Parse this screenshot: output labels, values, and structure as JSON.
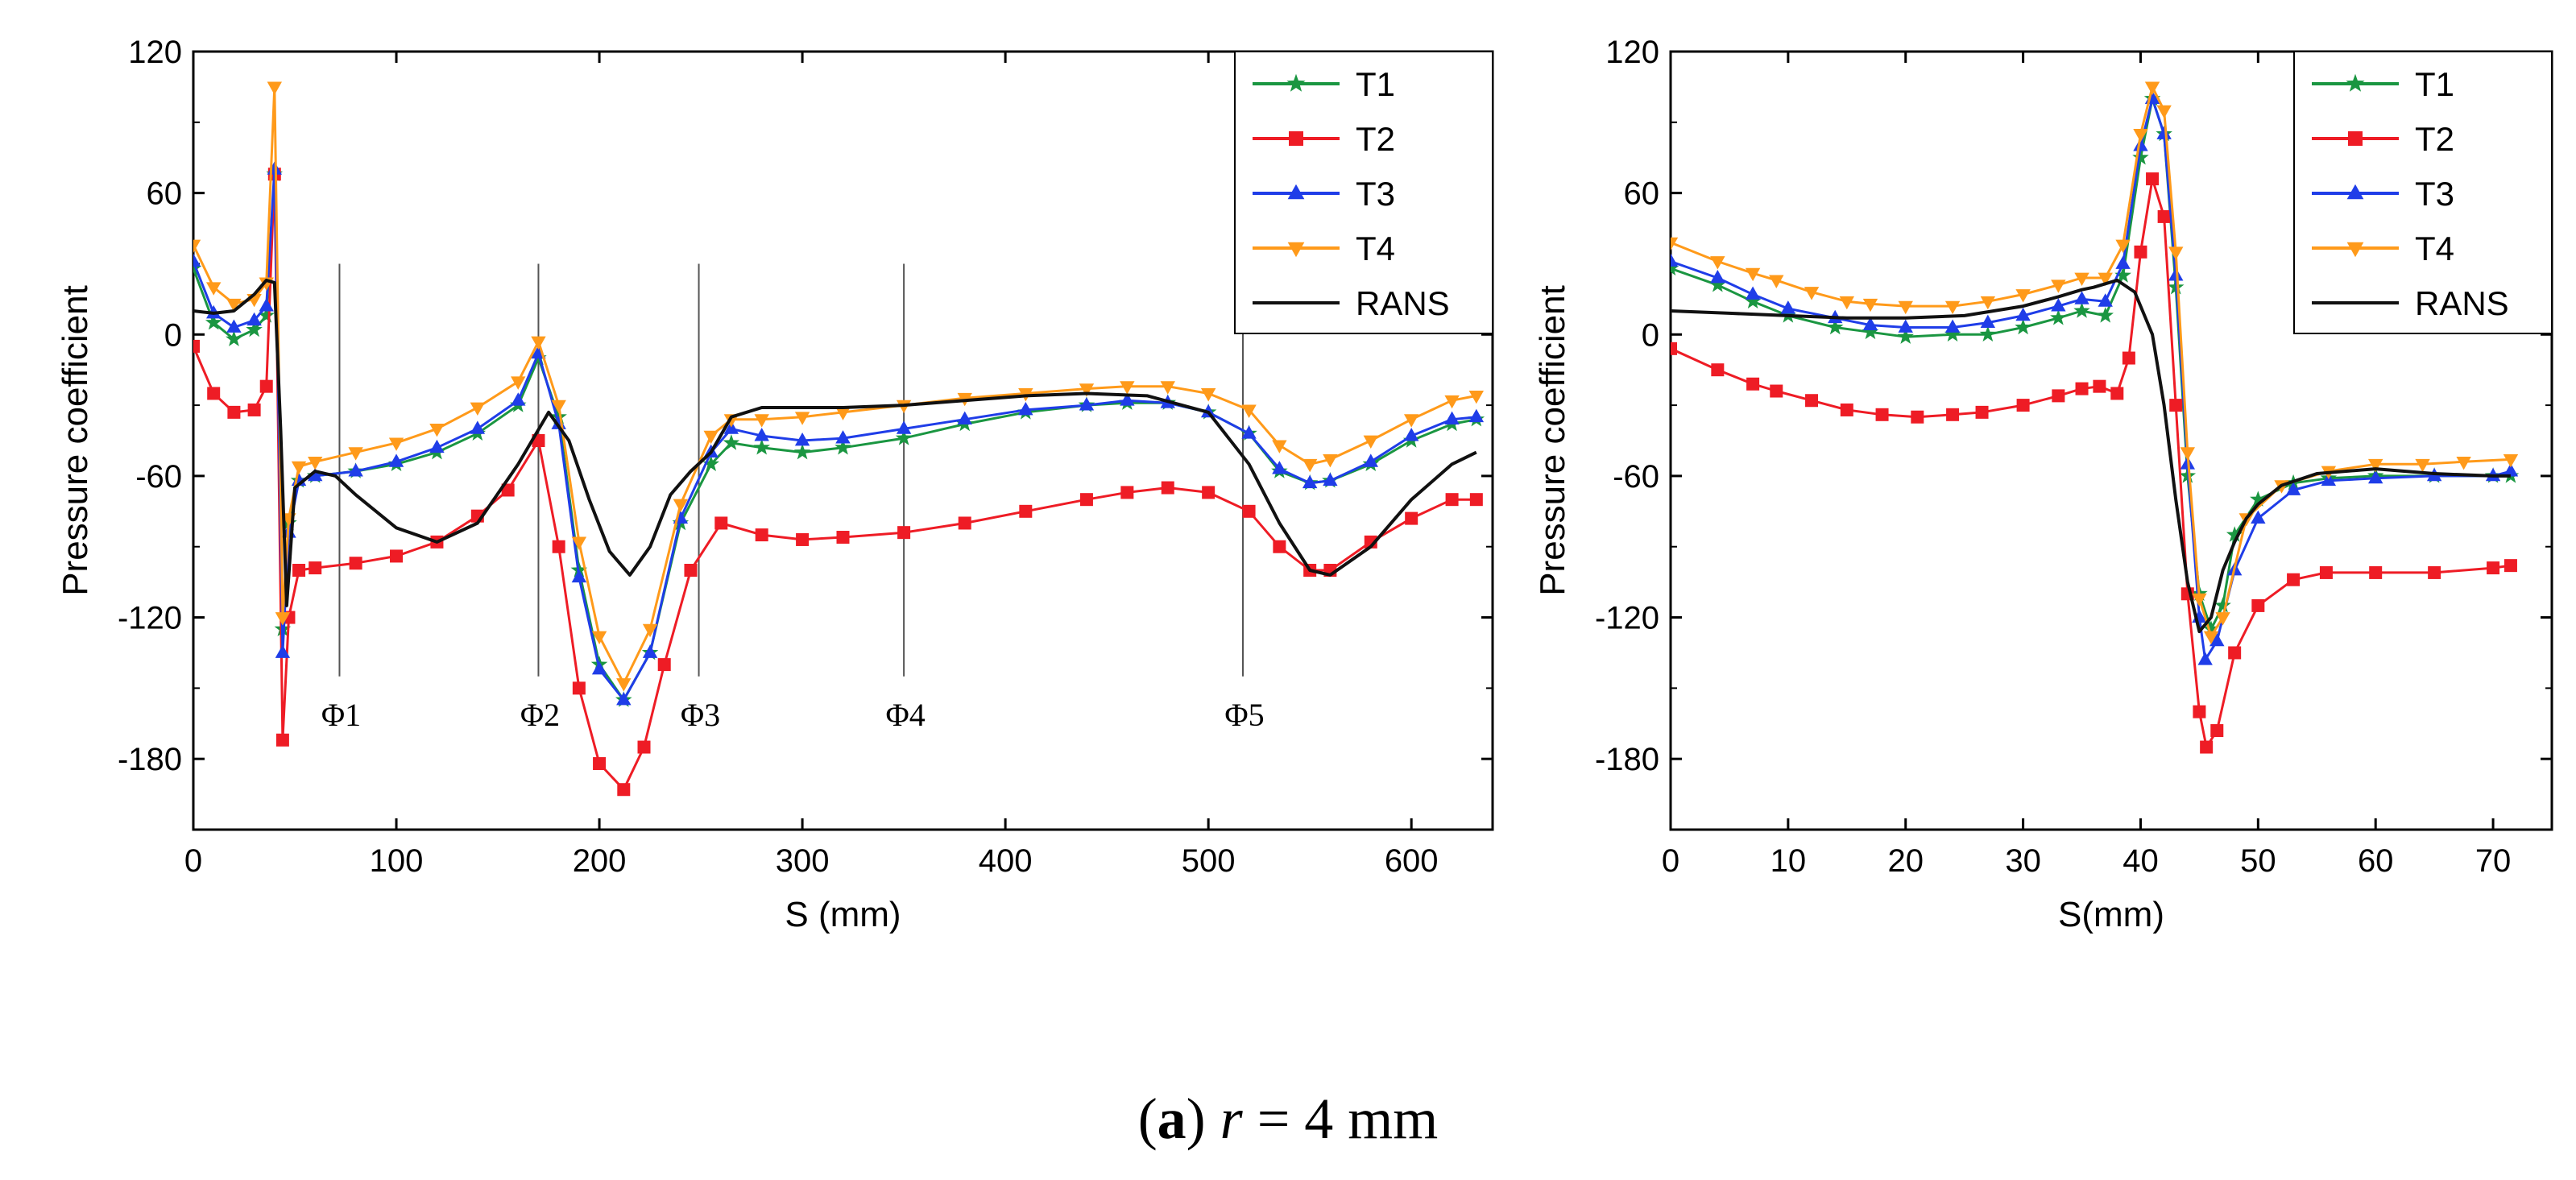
{
  "caption": {
    "open": "(",
    "label": "a",
    "close": ")",
    "variable": "r",
    "rest": "= 4 mm"
  },
  "style": {
    "series_colors": {
      "T1": "#1a9641",
      "T2": "#ee1c25",
      "T3": "#1f3de8",
      "T4": "#ff9a1a",
      "RANS": "#111111"
    },
    "series_markers": {
      "T1": "star",
      "T2": "square",
      "T3": "triangle-up",
      "T4": "triangle-down",
      "RANS": "none"
    }
  },
  "chart_data": [
    {
      "type": "line",
      "title": "",
      "xlabel": "S (mm)",
      "ylabel": "Pressure coefficient",
      "xlim": [
        0,
        640
      ],
      "ylim": [
        -210,
        120
      ],
      "xticks": [
        0,
        100,
        200,
        300,
        400,
        500,
        600
      ],
      "yticks": [
        -180,
        -120,
        -60,
        0,
        60,
        120
      ],
      "legend": "top-right",
      "annotations": [
        {
          "text": "Φ1",
          "x": 72
        },
        {
          "text": "Φ2",
          "x": 170
        },
        {
          "text": "Φ3",
          "x": 249
        },
        {
          "text": "Φ4",
          "x": 350
        },
        {
          "text": "Φ5",
          "x": 517
        }
      ],
      "series": [
        {
          "name": "T1",
          "x": [
            0,
            10,
            20,
            30,
            36,
            40,
            44,
            47,
            52,
            60,
            80,
            100,
            120,
            140,
            160,
            170,
            180,
            190,
            200,
            212,
            225,
            240,
            255,
            265,
            280,
            300,
            320,
            350,
            380,
            410,
            440,
            460,
            480,
            500,
            520,
            535,
            550,
            560,
            580,
            600,
            620,
            632
          ],
          "y": [
            28,
            5,
            -2,
            2,
            8,
            68,
            -125,
            -80,
            -62,
            -60,
            -58,
            -55,
            -50,
            -42,
            -30,
            -10,
            -35,
            -100,
            -140,
            -155,
            -135,
            -80,
            -55,
            -46,
            -48,
            -50,
            -48,
            -44,
            -38,
            -33,
            -30,
            -29,
            -29,
            -33,
            -42,
            -58,
            -63,
            -62,
            -55,
            -45,
            -38,
            -36
          ]
        },
        {
          "name": "T2",
          "x": [
            0,
            10,
            20,
            30,
            36,
            40,
            44,
            47,
            52,
            60,
            80,
            100,
            120,
            140,
            155,
            170,
            180,
            190,
            200,
            212,
            222,
            232,
            245,
            260,
            280,
            300,
            320,
            350,
            380,
            410,
            440,
            460,
            480,
            500,
            520,
            535,
            550,
            560,
            580,
            600,
            620,
            632
          ],
          "y": [
            -5,
            -25,
            -33,
            -32,
            -22,
            68,
            -172,
            -120,
            -100,
            -99,
            -97,
            -94,
            -88,
            -77,
            -66,
            -45,
            -90,
            -150,
            -182,
            -193,
            -175,
            -140,
            -100,
            -80,
            -85,
            -87,
            -86,
            -84,
            -80,
            -75,
            -70,
            -67,
            -65,
            -67,
            -75,
            -90,
            -100,
            -100,
            -88,
            -78,
            -70,
            -70
          ]
        },
        {
          "name": "T3",
          "x": [
            0,
            10,
            20,
            30,
            36,
            40,
            44,
            47,
            52,
            60,
            80,
            100,
            120,
            140,
            160,
            170,
            180,
            190,
            200,
            212,
            225,
            240,
            255,
            265,
            280,
            300,
            320,
            350,
            380,
            410,
            440,
            460,
            480,
            500,
            520,
            535,
            550,
            560,
            580,
            600,
            620,
            632
          ],
          "y": [
            31,
            9,
            3,
            6,
            12,
            70,
            -135,
            -84,
            -62,
            -60,
            -58,
            -54,
            -48,
            -40,
            -28,
            -8,
            -38,
            -103,
            -142,
            -155,
            -135,
            -78,
            -50,
            -40,
            -43,
            -45,
            -44,
            -40,
            -36,
            -32,
            -30,
            -28,
            -29,
            -33,
            -42,
            -57,
            -63,
            -62,
            -54,
            -43,
            -36,
            -35
          ]
        },
        {
          "name": "T4",
          "x": [
            0,
            10,
            20,
            30,
            36,
            40,
            44,
            47,
            52,
            60,
            80,
            100,
            120,
            140,
            160,
            170,
            180,
            190,
            200,
            212,
            225,
            240,
            255,
            265,
            280,
            300,
            320,
            350,
            380,
            410,
            440,
            460,
            480,
            500,
            520,
            535,
            550,
            560,
            580,
            600,
            620,
            632
          ],
          "y": [
            38,
            20,
            13,
            15,
            22,
            105,
            -120,
            -78,
            -56,
            -54,
            -50,
            -46,
            -40,
            -31,
            -20,
            -3,
            -30,
            -88,
            -128,
            -148,
            -125,
            -72,
            -43,
            -36,
            -36,
            -35,
            -33,
            -30,
            -27,
            -25,
            -23,
            -22,
            -22,
            -25,
            -32,
            -47,
            -55,
            -53,
            -45,
            -36,
            -28,
            -26
          ]
        },
        {
          "name": "RANS",
          "x": [
            0,
            10,
            20,
            30,
            36,
            40,
            43,
            46,
            50,
            60,
            70,
            80,
            100,
            120,
            140,
            160,
            175,
            185,
            195,
            205,
            215,
            225,
            235,
            245,
            255,
            265,
            280,
            300,
            320,
            350,
            380,
            410,
            440,
            470,
            500,
            520,
            535,
            550,
            560,
            580,
            600,
            620,
            632
          ],
          "y": [
            10,
            9,
            10,
            17,
            23,
            22,
            -40,
            -115,
            -65,
            -58,
            -60,
            -68,
            -82,
            -88,
            -80,
            -55,
            -33,
            -45,
            -70,
            -92,
            -102,
            -90,
            -68,
            -58,
            -50,
            -35,
            -31,
            -31,
            -31,
            -30,
            -28,
            -26,
            -25,
            -26,
            -33,
            -55,
            -80,
            -100,
            -102,
            -90,
            -70,
            -55,
            -50
          ]
        }
      ]
    },
    {
      "type": "line",
      "title": "",
      "xlabel": "S(mm)",
      "ylabel": "Pressure coefficient",
      "xlim": [
        0,
        75
      ],
      "ylim": [
        -210,
        120
      ],
      "xticks": [
        0,
        10,
        20,
        30,
        40,
        50,
        60,
        70
      ],
      "yticks": [
        -180,
        -120,
        -60,
        0,
        60,
        120
      ],
      "legend": "top-right",
      "series": [
        {
          "name": "T1",
          "x": [
            0,
            4,
            7,
            10,
            14,
            17,
            20,
            24,
            27,
            30,
            33,
            35,
            37,
            38.5,
            40,
            41,
            42,
            43,
            44,
            45,
            46,
            47,
            48,
            50,
            53,
            56,
            60,
            65,
            70,
            71.5
          ],
          "y": [
            28,
            21,
            14,
            8,
            3,
            1,
            -1,
            0,
            0,
            3,
            7,
            10,
            8,
            25,
            75,
            100,
            85,
            20,
            -60,
            -110,
            -125,
            -115,
            -85,
            -70,
            -63,
            -61,
            -60,
            -60,
            -60,
            -60
          ]
        },
        {
          "name": "T2",
          "x": [
            0,
            4,
            7,
            9,
            12,
            15,
            18,
            21,
            24,
            26.5,
            30,
            33,
            35,
            36.5,
            38,
            39,
            40,
            41,
            42,
            43,
            44,
            45,
            45.6,
            46.5,
            48,
            50,
            53,
            55.8,
            60,
            65,
            70,
            71.5
          ],
          "y": [
            -6,
            -15,
            -21,
            -24,
            -28,
            -32,
            -34,
            -35,
            -34,
            -33,
            -30,
            -26,
            -23,
            -22,
            -25,
            -10,
            35,
            66,
            50,
            -30,
            -110,
            -160,
            -175,
            -168,
            -135,
            -115,
            -104,
            -101,
            -101,
            -101,
            -99,
            -98
          ]
        },
        {
          "name": "T3",
          "x": [
            0,
            4,
            7,
            10,
            14,
            17,
            20,
            24,
            27,
            30,
            33,
            35,
            37,
            38.5,
            40,
            41,
            42,
            43,
            44,
            45,
            45.5,
            46.5,
            48,
            50,
            53,
            56,
            60,
            65,
            70,
            71.5
          ],
          "y": [
            31,
            24,
            17,
            11,
            7,
            4,
            3,
            3,
            5,
            8,
            12,
            15,
            14,
            30,
            80,
            100,
            85,
            25,
            -55,
            -120,
            -138,
            -130,
            -100,
            -78,
            -66,
            -62,
            -61,
            -60,
            -60,
            -58
          ]
        },
        {
          "name": "T4",
          "x": [
            0,
            4,
            7,
            9,
            12,
            15,
            17,
            20,
            24,
            27,
            30,
            33,
            35,
            37,
            38.5,
            40,
            41,
            42,
            43,
            44,
            45,
            46,
            47,
            49,
            52,
            56,
            60,
            64,
            67.5,
            71.5
          ],
          "y": [
            39,
            31,
            26,
            23,
            18,
            14,
            13,
            12,
            12,
            14,
            17,
            21,
            24,
            24,
            38,
            85,
            105,
            95,
            35,
            -50,
            -112,
            -128,
            -120,
            -78,
            -64,
            -58,
            -55,
            -55,
            -54,
            -53
          ]
        },
        {
          "name": "RANS",
          "x": [
            0,
            5,
            10,
            15,
            20,
            25,
            30,
            33,
            35,
            36,
            38,
            39.5,
            41,
            42,
            43,
            44,
            45,
            46,
            47,
            48,
            49,
            50,
            52,
            55,
            60,
            65,
            70,
            71.5
          ],
          "y": [
            10,
            9,
            8,
            7,
            7,
            8,
            12,
            16,
            19,
            20,
            23,
            18,
            0,
            -30,
            -70,
            -105,
            -126,
            -120,
            -100,
            -88,
            -78,
            -72,
            -64,
            -59,
            -57,
            -59,
            -60,
            -60
          ]
        }
      ]
    }
  ]
}
